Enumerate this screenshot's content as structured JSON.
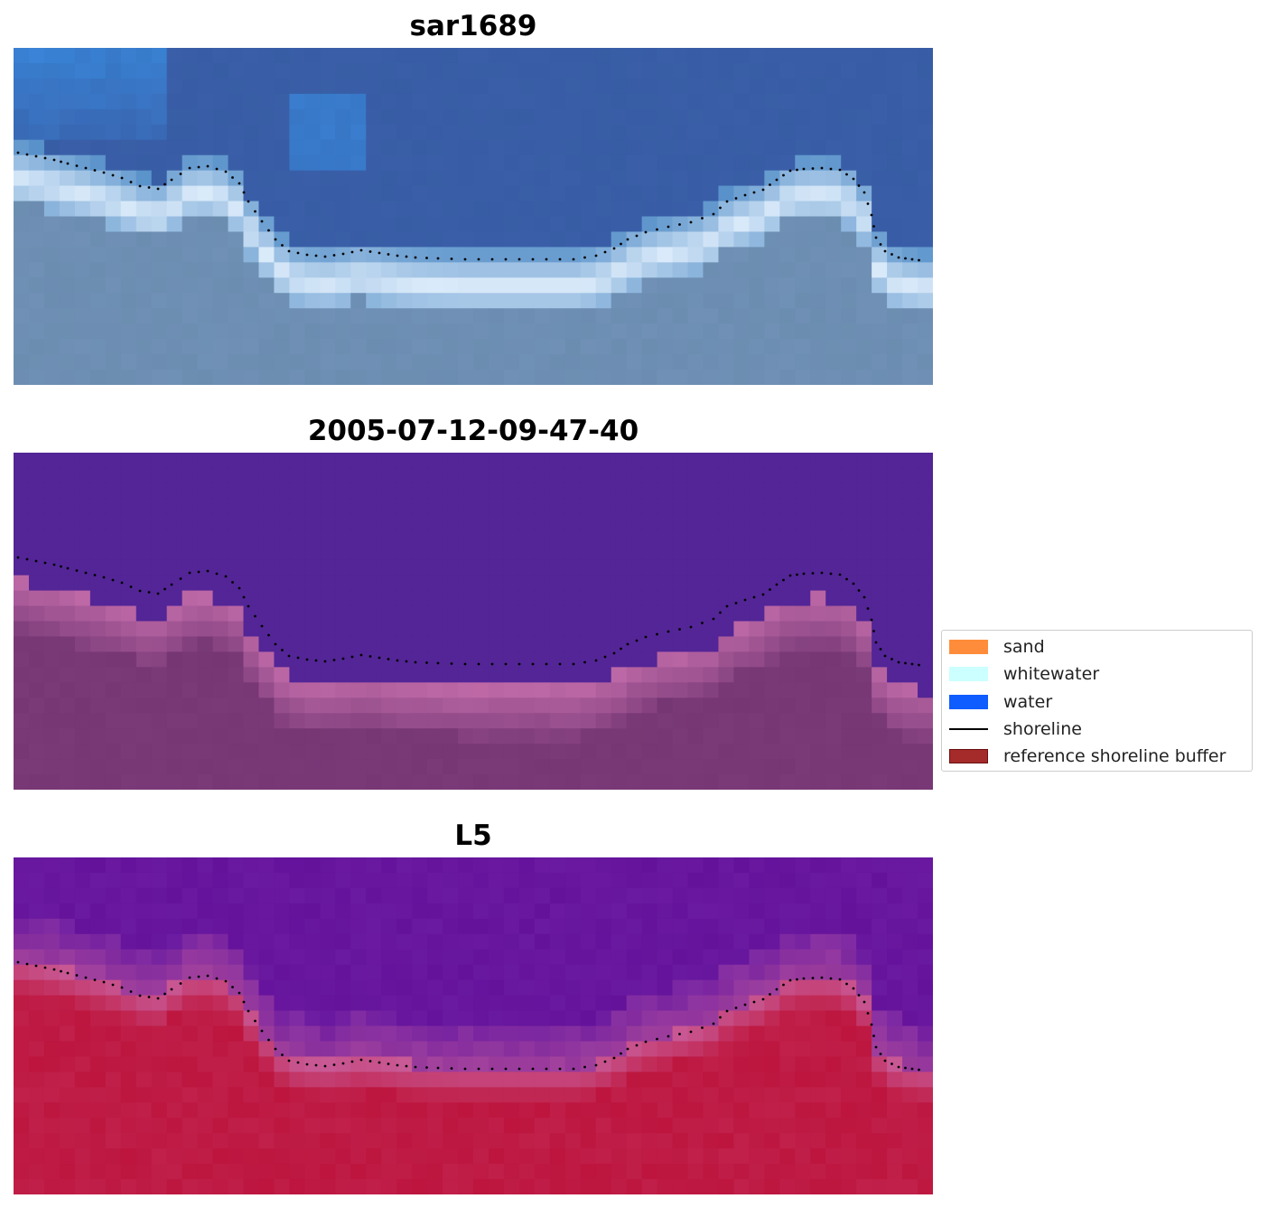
{
  "panels": [
    {
      "title": "sar1689"
    },
    {
      "title": "2005-07-12-09-47-40"
    },
    {
      "title": "L5"
    }
  ],
  "legend": {
    "items": [
      {
        "label": "sand",
        "color": "#ff8c3a",
        "kind": "patch"
      },
      {
        "label": "whitewater",
        "color": "#ccffff",
        "kind": "patch"
      },
      {
        "label": "water",
        "color": "#0f5cff",
        "kind": "patch"
      },
      {
        "label": "shoreline",
        "color": "#000000",
        "kind": "line"
      },
      {
        "label": "reference shoreline buffer",
        "color": "#a52a2a",
        "kind": "patch"
      }
    ]
  },
  "colors": {
    "rgb_water": "#3a5fa8",
    "rgb_whitewater": "#e8f4ff",
    "rgb_land": "#6b8db0",
    "class_water": "#532596",
    "class_land": "#7a3a78",
    "class_edge": "#c06aa8",
    "index_water": "#6a1aa0",
    "index_land": "#c0204a",
    "shoreline_dots": "#000000"
  }
}
